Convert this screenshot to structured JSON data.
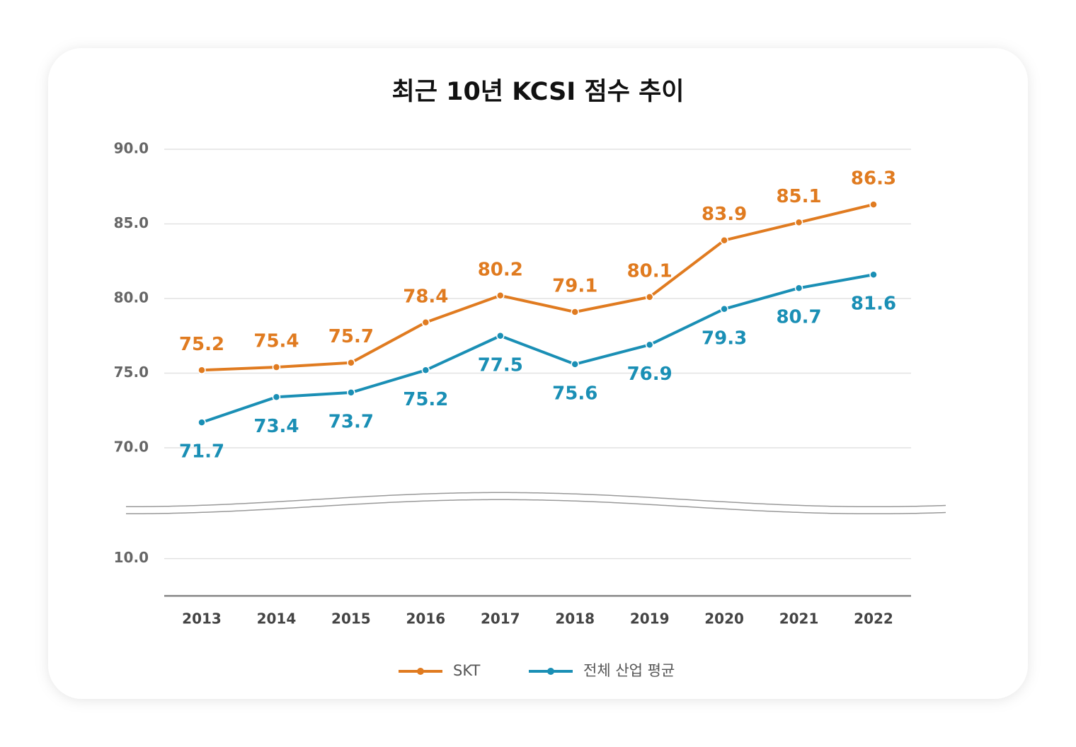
{
  "chart_data": {
    "type": "line",
    "title": "최근 10년 KCSI 점수 추이",
    "categories": [
      "2013",
      "2014",
      "2015",
      "2016",
      "2017",
      "2018",
      "2019",
      "2020",
      "2021",
      "2022"
    ],
    "series": [
      {
        "name": "SKT",
        "color": "#e07b20",
        "values": [
          75.2,
          75.4,
          75.7,
          78.4,
          80.2,
          79.1,
          80.1,
          83.9,
          85.1,
          86.3
        ]
      },
      {
        "name": "전체 산업 평균",
        "color": "#1a8fb5",
        "values": [
          71.7,
          73.4,
          73.7,
          75.2,
          77.5,
          75.6,
          76.9,
          79.3,
          80.7,
          81.6
        ]
      }
    ],
    "ylim": [
      7.5,
      90
    ],
    "ybreak": [
      13,
      67
    ],
    "yticks": [
      {
        "value": 90,
        "label": "90.0"
      },
      {
        "value": 85,
        "label": "85.0"
      },
      {
        "value": 80,
        "label": "80.0"
      },
      {
        "value": 75,
        "label": "75.0"
      },
      {
        "value": 70,
        "label": "70.0"
      },
      {
        "value": 10,
        "label": "10.0"
      }
    ],
    "grid": true,
    "legend": "bottom"
  }
}
